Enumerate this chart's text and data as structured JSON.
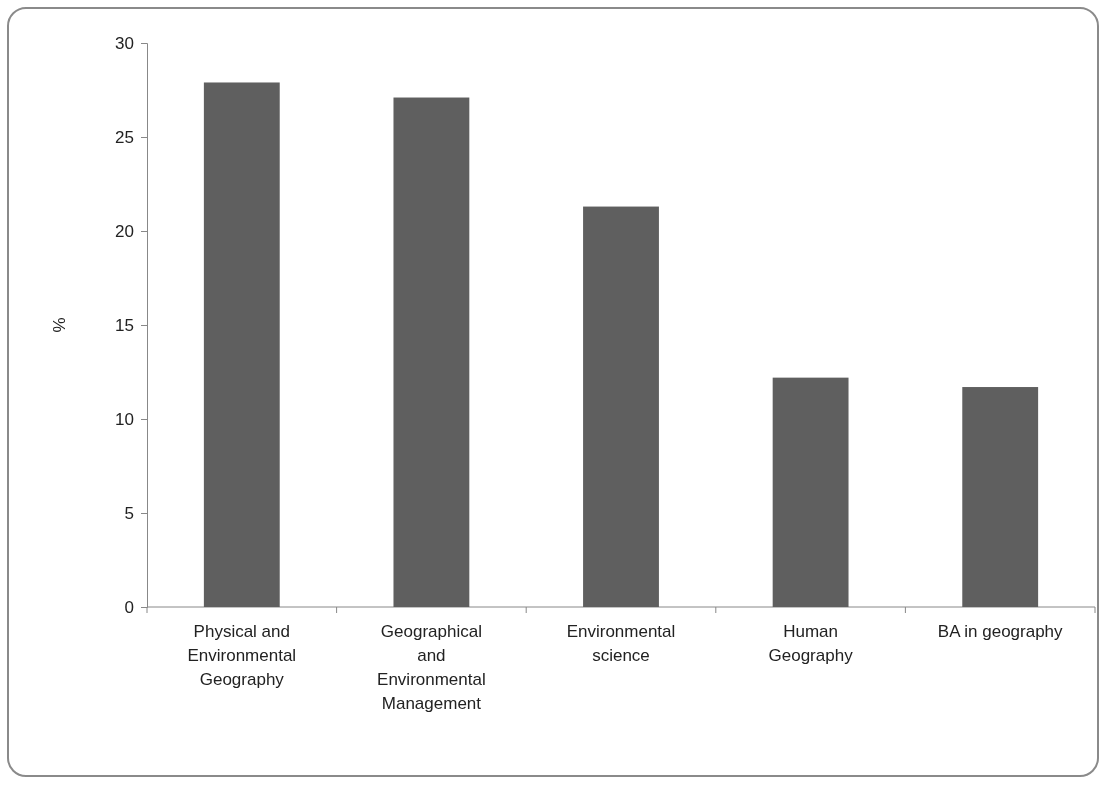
{
  "chart_data": {
    "type": "bar",
    "ylabel": "%",
    "categories": [
      "Physical and Environmental Geography",
      "Geographical and Environmental Management",
      "Environmental science",
      "Human Geography",
      "BA in geography"
    ],
    "values": [
      27.9,
      27.1,
      21.3,
      12.2,
      11.7
    ],
    "color": "#5f5f5f",
    "ylim": [
      0,
      30
    ],
    "yticks": [
      0,
      5,
      10,
      15,
      20,
      25,
      30
    ],
    "grid": false
  }
}
